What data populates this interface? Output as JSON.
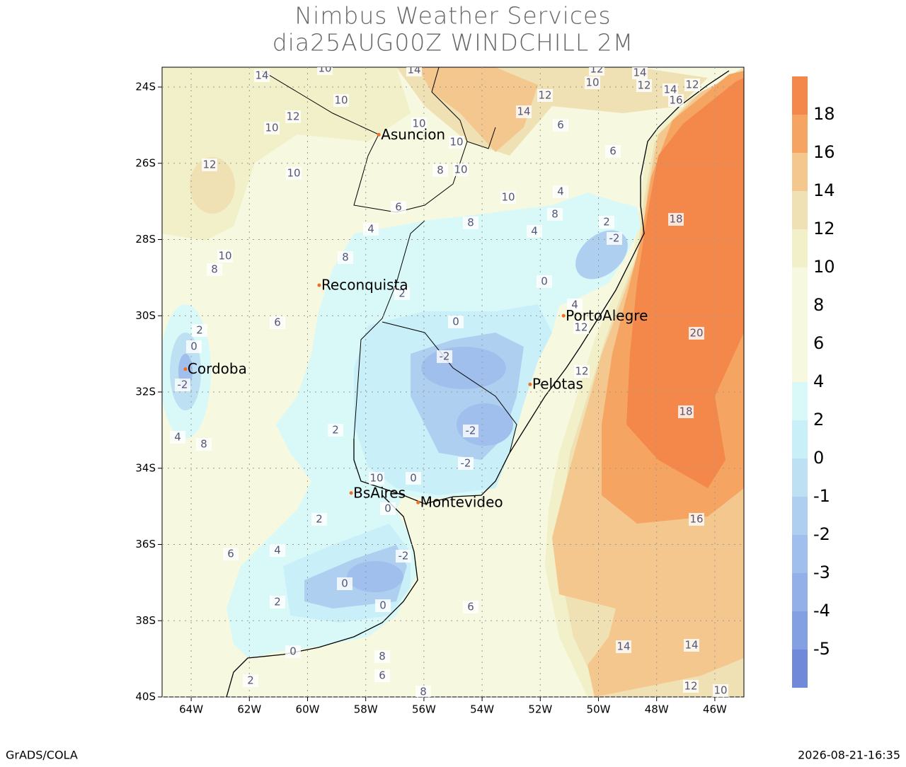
{
  "header": {
    "title": "Nimbus Weather Services",
    "subtitle": "dia25AUG00Z WINDCHILL 2M"
  },
  "map": {
    "xlim": [
      -65,
      -45
    ],
    "ylim": [
      -40,
      -23.48
    ],
    "grid": true,
    "xticks": [
      {
        "value": -64,
        "label": "64W"
      },
      {
        "value": -62,
        "label": "62W"
      },
      {
        "value": -60,
        "label": "60W"
      },
      {
        "value": -58,
        "label": "58W"
      },
      {
        "value": -56,
        "label": "56W"
      },
      {
        "value": -54,
        "label": "54W"
      },
      {
        "value": -52,
        "label": "52W"
      },
      {
        "value": -50,
        "label": "50W"
      },
      {
        "value": -48,
        "label": "48W"
      },
      {
        "value": -46,
        "label": "46W"
      }
    ],
    "yticks": [
      {
        "value": -24,
        "label": "24S"
      },
      {
        "value": -26,
        "label": "26S"
      },
      {
        "value": -28,
        "label": "28S"
      },
      {
        "value": -30,
        "label": "30S"
      },
      {
        "value": -32,
        "label": "32S"
      },
      {
        "value": -34,
        "label": "34S"
      },
      {
        "value": -36,
        "label": "36S"
      },
      {
        "value": -38,
        "label": "38S"
      },
      {
        "value": -40,
        "label": "40S"
      }
    ],
    "cities": [
      {
        "name": "Asuncion",
        "lon": -57.55,
        "lat": -25.25
      },
      {
        "name": "Reconquista",
        "lon": -59.6,
        "lat": -29.2
      },
      {
        "name": "Cordoba",
        "lon": -64.2,
        "lat": -31.4
      },
      {
        "name": "PortoAlegre",
        "lon": -51.2,
        "lat": -30.0
      },
      {
        "name": "Pelotas",
        "lon": -52.35,
        "lat": -31.8
      },
      {
        "name": "BsAires",
        "lon": -58.5,
        "lat": -34.65
      },
      {
        "name": "Montevideo",
        "lon": -56.2,
        "lat": -34.9
      }
    ],
    "contour_labels": [
      14,
      10,
      14,
      12,
      14,
      10,
      12,
      14,
      12,
      16,
      12,
      14,
      10,
      12,
      10,
      10,
      10,
      10,
      8,
      12,
      10,
      6,
      6,
      4,
      10,
      6,
      8,
      8,
      4,
      4,
      2,
      -2,
      18,
      10,
      8,
      8,
      2,
      0,
      4,
      12,
      6,
      0,
      2,
      0,
      -2,
      -2,
      12,
      20,
      18,
      2,
      -2,
      4,
      8,
      -2,
      0,
      10,
      0,
      2,
      16,
      4,
      6,
      -2,
      0,
      2,
      0,
      6,
      0,
      8,
      6,
      8,
      14,
      14,
      12,
      10,
      2
    ]
  },
  "colorbar": {
    "levels": [
      18,
      16,
      14,
      12,
      10,
      8,
      6,
      4,
      2,
      0,
      -1,
      -2,
      -3,
      -4,
      -5
    ],
    "colors": [
      "#f4874a",
      "#f6a462",
      "#f4c78f",
      "#f0e1b4",
      "#f1f0c8",
      "#f6f8df",
      "#f6f8df",
      "#f6f8df",
      "#d9f9f9",
      "#c9eff8",
      "#bde0f3",
      "#afcff0",
      "#a1bfec",
      "#93b0e8",
      "#83a0e2",
      "#7189d9"
    ]
  },
  "footer": {
    "left": "GrADS/COLA",
    "right": "2026-08-21-16:35"
  }
}
